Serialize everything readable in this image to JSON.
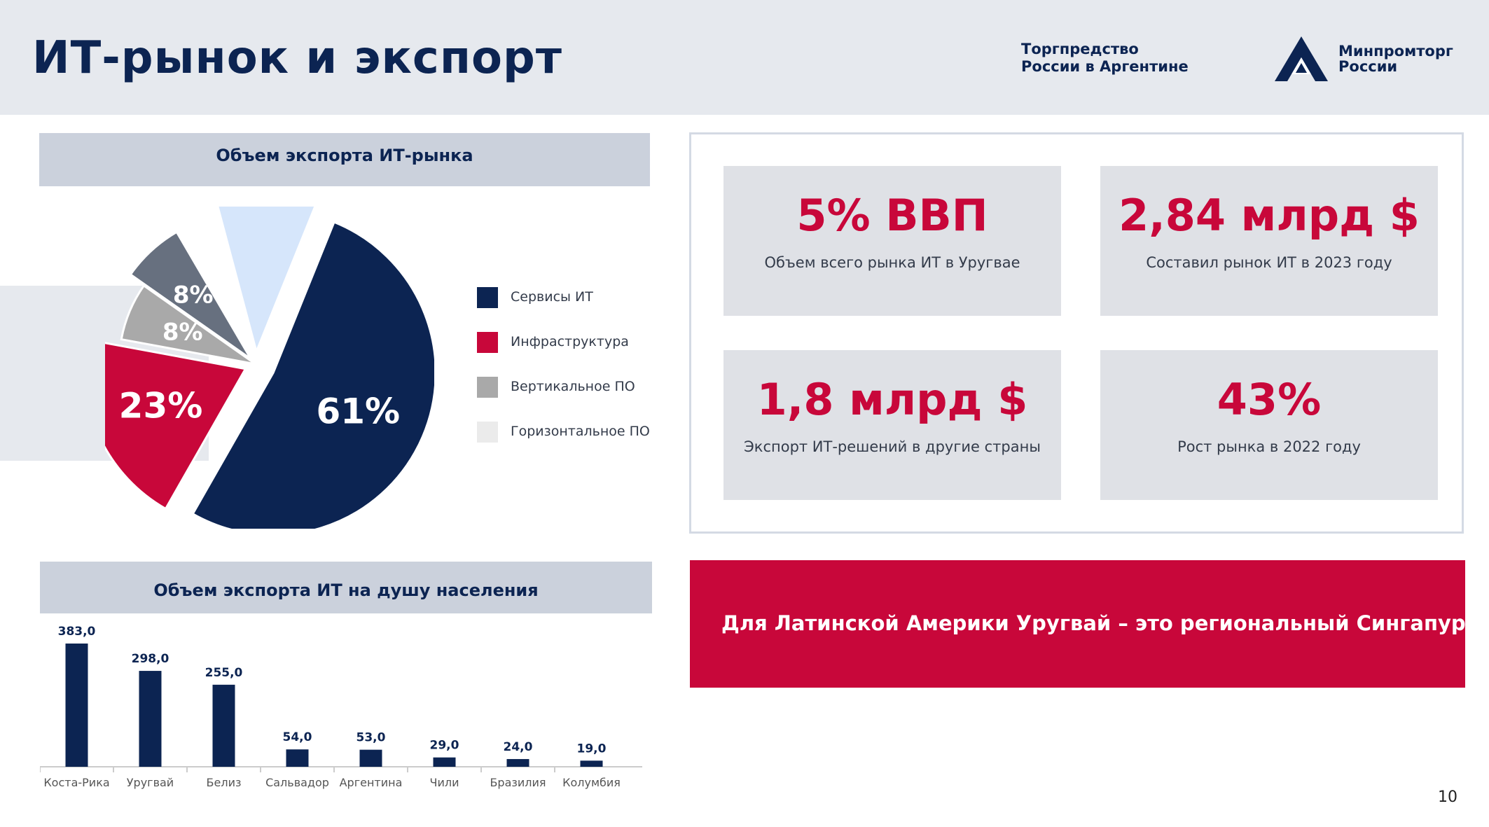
{
  "header": {
    "title": "ИТ-рынок и экспорт",
    "trade_office_line1": "Торгпредство",
    "trade_office_line2": "России в Аргентине",
    "ministry_line1": "Минпромторг",
    "ministry_line2": "России",
    "logo_icon": "ministry-triangle-logo-icon"
  },
  "colors": {
    "navy": "#0c2452",
    "red": "#c8073a",
    "gray": "#a9a9a9",
    "slate": "#67707f",
    "light_blue": "#d6e6fb",
    "header_bg": "#e6e9ee"
  },
  "pie_section": {
    "title": "Объем экспорта ИТ-рынка"
  },
  "bar_section": {
    "title": "Объем экспорта ИТ на душу населения"
  },
  "legend": [
    {
      "label": "Сервисы ИТ",
      "color": "#0c2452"
    },
    {
      "label": "Инфраструктура",
      "color": "#c8073a"
    },
    {
      "label": "Вертикальное ПО",
      "color": "#a9a9a9"
    },
    {
      "label": "Горизонтальное ПО",
      "color": "#ebebeb"
    }
  ],
  "chart_data": [
    {
      "type": "pie",
      "slices": [
        {
          "label": "Сервисы ИТ",
          "value": 61,
          "display": "61%",
          "color": "#0c2452"
        },
        {
          "label": "Инфраструктура",
          "value": 23,
          "display": "23%",
          "color": "#c8073a"
        },
        {
          "label": "Вертикальное ПО",
          "value": 8,
          "display": "8%",
          "color": "#a9a9a9"
        },
        {
          "label": "",
          "value": 8,
          "display": "8%",
          "color": "#67707f"
        },
        {
          "label": "Горизонтальное ПО",
          "value": 5,
          "display": "",
          "color": "#ffffff"
        },
        {
          "label": "",
          "value": 12,
          "display": "",
          "color": "#d6e6fb"
        }
      ]
    },
    {
      "type": "bar",
      "categories": [
        "Коста-Рика",
        "Уругвай",
        "Белиз",
        "Сальвадор",
        "Аргентина",
        "Чили",
        "Бразилия",
        "Колумбия"
      ],
      "values": [
        383,
        298,
        255,
        54,
        53,
        29,
        24,
        19
      ],
      "value_labels": [
        "383,0",
        "298,0",
        "255,0",
        "54,0",
        "53,0",
        "29,0",
        "24,0",
        "19,0"
      ],
      "ylim": [
        0,
        383
      ]
    }
  ],
  "kpis": [
    {
      "value": "5% ВВП",
      "desc": "Объем всего рынка ИТ в Уругвае"
    },
    {
      "value": "2,84 млрд $",
      "desc": "Составил рынок ИТ в 2023 году"
    },
    {
      "value": "1,8 млрд $",
      "desc": "Экспорт ИТ-решений в другие страны"
    },
    {
      "value": "43%",
      "desc": "Рост рынка в 2022 году"
    }
  ],
  "banner": {
    "text": "Для Латинской Америки Уругвай – это региональный Сингапур"
  },
  "page_number": "10"
}
